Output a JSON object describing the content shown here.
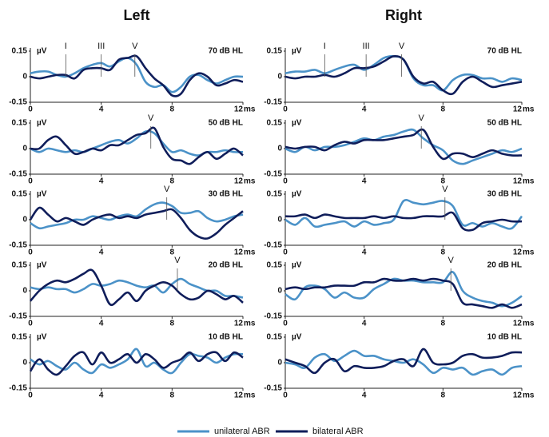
{
  "chart_data": [
    {
      "type": "line",
      "title": "Left",
      "label": "70 dB HL",
      "ylabel": "µV",
      "xlabel": "ms",
      "x": [
        0,
        0.5,
        1,
        1.5,
        2,
        2.5,
        3,
        3.5,
        4,
        4.5,
        5,
        5.5,
        6,
        6.5,
        7,
        7.5,
        8,
        8.5,
        9,
        9.5,
        10,
        10.5,
        11,
        11.5,
        12
      ],
      "series": [
        {
          "color": "#4b92c8",
          "values": [
            0.02,
            0.03,
            0.03,
            0.01,
            0.0,
            0.02,
            0.05,
            0.07,
            0.08,
            0.06,
            0.09,
            0.11,
            0.07,
            -0.03,
            -0.06,
            -0.05,
            -0.09,
            -0.06,
            0.0,
            0.01,
            -0.02,
            -0.04,
            -0.02,
            0.0,
            0.0
          ]
        },
        {
          "color": "#0f1d5a",
          "values": [
            0,
            -0.01,
            0.0,
            0.01,
            0.01,
            -0.01,
            0.04,
            0.05,
            0.05,
            0.04,
            0.1,
            0.11,
            0.12,
            0.05,
            -0.01,
            -0.05,
            -0.11,
            -0.1,
            -0.02,
            0.02,
            0.0,
            -0.05,
            -0.04,
            -0.02,
            -0.03
          ]
        }
      ],
      "peaks": [
        {
          "label": "I",
          "x": 2
        },
        {
          "label": "III",
          "x": 4
        },
        {
          "label": "V",
          "x": 5.9
        }
      ],
      "xlim": [
        0,
        12
      ],
      "ylim": [
        -0.15,
        0.15
      ],
      "xticks": [
        0,
        4,
        8,
        12
      ],
      "yticks": [
        0.15,
        0,
        -0.15
      ]
    },
    {
      "type": "line",
      "label": "50 dB HL",
      "ylabel": "µV",
      "xlabel": "ms",
      "x": [
        0,
        0.5,
        1,
        1.5,
        2,
        2.5,
        3,
        3.5,
        4,
        4.5,
        5,
        5.5,
        6,
        6.5,
        7,
        7.5,
        8,
        8.5,
        9,
        9.5,
        10,
        10.5,
        11,
        11.5,
        12
      ],
      "series": [
        {
          "color": "#4b92c8",
          "values": [
            0,
            -0.02,
            0.0,
            -0.01,
            -0.02,
            -0.01,
            -0.02,
            0.0,
            0.02,
            0.04,
            0.05,
            0.03,
            0.06,
            0.1,
            0.09,
            0.03,
            -0.02,
            -0.01,
            -0.03,
            -0.04,
            -0.02,
            -0.02,
            -0.01,
            -0.02,
            -0.02
          ]
        },
        {
          "color": "#0f1d5a",
          "values": [
            0,
            0.0,
            0.05,
            0.07,
            0.02,
            -0.03,
            -0.02,
            0.0,
            -0.01,
            0.02,
            0.02,
            0.05,
            0.08,
            0.09,
            0.12,
            0.01,
            -0.06,
            -0.07,
            -0.09,
            -0.05,
            -0.02,
            -0.06,
            -0.03,
            0.0,
            -0.04
          ]
        }
      ],
      "peaks": [
        {
          "label": "V",
          "x": 6.8
        }
      ],
      "xlim": [
        0,
        12
      ],
      "ylim": [
        -0.15,
        0.15
      ],
      "xticks": [
        0,
        4,
        8,
        12
      ],
      "yticks": [
        0.15,
        0,
        -0.15
      ]
    },
    {
      "type": "line",
      "label": "30 dB HL",
      "ylabel": "µV",
      "xlabel": "ms",
      "x": [
        0,
        0.5,
        1,
        1.5,
        2,
        2.5,
        3,
        3.5,
        4,
        4.5,
        5,
        5.5,
        6,
        6.5,
        7,
        7.5,
        8,
        8.5,
        9,
        9.5,
        10,
        10.5,
        11,
        11.5,
        12
      ],
      "series": [
        {
          "color": "#4b92c8",
          "values": [
            -0.02,
            -0.05,
            -0.04,
            -0.03,
            -0.02,
            0.0,
            0.0,
            0.02,
            0.01,
            0.0,
            0.02,
            0.03,
            0.02,
            0.06,
            0.09,
            0.1,
            0.08,
            0.04,
            0.04,
            0.05,
            0.01,
            -0.01,
            0.0,
            0.02,
            0.03
          ]
        },
        {
          "color": "#0f1d5a",
          "values": [
            0.0,
            0.07,
            0.03,
            -0.01,
            0.01,
            -0.01,
            -0.03,
            0.0,
            0.02,
            0.03,
            0.01,
            0.02,
            0.01,
            0.03,
            0.04,
            0.05,
            0.06,
            0.01,
            -0.06,
            -0.1,
            -0.11,
            -0.08,
            -0.03,
            0.01,
            0.05
          ]
        }
      ],
      "peaks": [
        {
          "label": "V",
          "x": 7.7
        }
      ],
      "xlim": [
        0,
        12
      ],
      "ylim": [
        -0.15,
        0.15
      ],
      "xticks": [
        0,
        4,
        8,
        12
      ],
      "yticks": [
        0.15,
        0,
        -0.15
      ]
    },
    {
      "type": "line",
      "label": "20 dB HL",
      "ylabel": "µV",
      "xlabel": "ms",
      "x": [
        0,
        0.5,
        1,
        1.5,
        2,
        2.5,
        3,
        3.5,
        4,
        4.5,
        5,
        5.5,
        6,
        6.5,
        7,
        7.5,
        8,
        8.5,
        9,
        9.5,
        10,
        10.5,
        11,
        11.5,
        12
      ],
      "series": [
        {
          "color": "#4b92c8",
          "values": [
            0.02,
            0.01,
            0.02,
            0.01,
            0.01,
            -0.01,
            0.01,
            0.04,
            0.03,
            0.04,
            0.06,
            0.05,
            0.03,
            0.02,
            0.03,
            -0.01,
            0.04,
            0.07,
            0.04,
            0.02,
            0.0,
            0.0,
            -0.03,
            -0.03,
            -0.04
          ]
        },
        {
          "color": "#0f1d5a",
          "values": [
            -0.06,
            0.0,
            0.04,
            0.06,
            0.05,
            0.07,
            0.1,
            0.12,
            0.03,
            -0.08,
            -0.05,
            -0.01,
            -0.06,
            0.0,
            0.03,
            0.05,
            0.03,
            -0.02,
            -0.05,
            -0.04,
            0.0,
            -0.02,
            -0.05,
            -0.03,
            -0.07
          ]
        }
      ],
      "peaks": [
        {
          "label": "V",
          "x": 8.3
        }
      ],
      "xlim": [
        0,
        12
      ],
      "ylim": [
        -0.15,
        0.15
      ],
      "xticks": [
        0,
        4,
        8,
        12
      ],
      "yticks": [
        0.15,
        0,
        -0.15
      ]
    },
    {
      "type": "line",
      "label": "10 dB HL",
      "ylabel": "µV",
      "xlabel": "ms",
      "x": [
        0,
        0.5,
        1,
        1.5,
        2,
        2.5,
        3,
        3.5,
        4,
        4.5,
        5,
        5.5,
        6,
        6.5,
        7,
        7.5,
        8,
        8.5,
        9,
        9.5,
        10,
        10.5,
        11,
        11.5,
        12
      ],
      "series": [
        {
          "color": "#4b92c8",
          "values": [
            0.02,
            -0.01,
            0.01,
            -0.02,
            -0.04,
            0.0,
            -0.04,
            -0.06,
            -0.01,
            -0.03,
            -0.01,
            0.02,
            0.08,
            -0.02,
            0.0,
            -0.04,
            -0.06,
            0.0,
            0.05,
            0.04,
            0.03,
            0.0,
            0.03,
            0.05,
            0.05
          ]
        },
        {
          "color": "#0f1d5a",
          "values": [
            -0.05,
            0.02,
            -0.04,
            -0.07,
            -0.02,
            0.04,
            0.06,
            -0.01,
            0.06,
            0.0,
            0.02,
            0.05,
            0.0,
            0.05,
            0.02,
            -0.03,
            0.0,
            0.02,
            0.06,
            0.01,
            0.05,
            0.06,
            0.01,
            0.06,
            0.03
          ]
        }
      ],
      "xlim": [
        0,
        12
      ],
      "ylim": [
        -0.15,
        0.15
      ],
      "xticks": [
        0,
        4,
        8,
        12
      ],
      "yticks": [
        0.15,
        0,
        -0.15
      ]
    },
    {
      "type": "line",
      "title": "Right",
      "label": "70 dB HL",
      "ylabel": "µV",
      "xlabel": "ms",
      "x": [
        0,
        0.5,
        1,
        1.5,
        2,
        2.5,
        3,
        3.5,
        4,
        4.5,
        5,
        5.5,
        6,
        6.5,
        7,
        7.5,
        8,
        8.5,
        9,
        9.5,
        10,
        10.5,
        11,
        11.5,
        12
      ],
      "series": [
        {
          "color": "#4b92c8",
          "values": [
            0.02,
            0.03,
            0.03,
            0.04,
            0.02,
            0.04,
            0.06,
            0.07,
            0.04,
            0.07,
            0.11,
            0.12,
            0.1,
            -0.01,
            -0.05,
            -0.05,
            -0.08,
            -0.02,
            0.01,
            0.01,
            -0.01,
            -0.01,
            -0.03,
            -0.01,
            -0.02
          ]
        },
        {
          "color": "#0f1d5a",
          "values": [
            0.0,
            -0.01,
            0.0,
            0.0,
            0.01,
            0.0,
            0.02,
            0.05,
            0.05,
            0.06,
            0.09,
            0.12,
            0.1,
            0.0,
            -0.04,
            -0.03,
            -0.08,
            -0.1,
            -0.03,
            0.0,
            -0.03,
            -0.06,
            -0.05,
            -0.04,
            -0.03
          ]
        }
      ],
      "peaks": [
        {
          "label": "I",
          "x": 2
        },
        {
          "label": "III",
          "x": 4.1
        },
        {
          "label": "V",
          "x": 5.9
        }
      ],
      "xlim": [
        0,
        12
      ],
      "ylim": [
        -0.15,
        0.15
      ],
      "xticks": [
        0,
        4,
        8,
        12
      ],
      "yticks": [
        0.15,
        0,
        -0.15
      ]
    },
    {
      "type": "line",
      "label": "50 dB HL",
      "ylabel": "µV",
      "xlabel": "ms",
      "x": [
        0,
        0.5,
        1,
        1.5,
        2,
        2.5,
        3,
        3.5,
        4,
        4.5,
        5,
        5.5,
        6,
        6.5,
        7,
        7.5,
        8,
        8.5,
        9,
        9.5,
        10,
        10.5,
        11,
        11.5,
        12
      ],
      "series": [
        {
          "color": "#4b92c8",
          "values": [
            0.0,
            -0.02,
            0.01,
            -0.01,
            0.01,
            0.01,
            0.02,
            0.04,
            0.06,
            0.05,
            0.07,
            0.08,
            0.1,
            0.11,
            0.06,
            0.02,
            -0.01,
            -0.07,
            -0.09,
            -0.07,
            -0.05,
            -0.03,
            -0.01,
            -0.02,
            0.0
          ]
        },
        {
          "color": "#0f1d5a",
          "values": [
            0.01,
            0.0,
            0.01,
            0.01,
            -0.01,
            0.02,
            0.04,
            0.03,
            0.05,
            0.05,
            0.05,
            0.06,
            0.07,
            0.08,
            0.11,
            0.01,
            -0.06,
            -0.03,
            -0.03,
            -0.05,
            -0.03,
            -0.01,
            -0.03,
            -0.04,
            -0.04
          ]
        }
      ],
      "peaks": [
        {
          "label": "V",
          "x": 6.9
        }
      ],
      "xlim": [
        0,
        12
      ],
      "ylim": [
        -0.15,
        0.15
      ],
      "xticks": [
        0,
        4,
        8,
        12
      ],
      "yticks": [
        0.15,
        0,
        -0.15
      ]
    },
    {
      "type": "line",
      "label": "30 dB HL",
      "ylabel": "µV",
      "xlabel": "ms",
      "x": [
        0,
        0.5,
        1,
        1.5,
        2,
        2.5,
        3,
        3.5,
        4,
        4.5,
        5,
        5.5,
        6,
        6.5,
        7,
        7.5,
        8,
        8.5,
        9,
        9.5,
        10,
        10.5,
        11,
        11.5,
        12
      ],
      "series": [
        {
          "color": "#4b92c8",
          "values": [
            0.0,
            -0.03,
            0.01,
            -0.04,
            -0.03,
            -0.02,
            -0.01,
            -0.04,
            -0.01,
            -0.03,
            -0.02,
            0.0,
            0.11,
            0.1,
            0.09,
            0.1,
            0.11,
            0.08,
            -0.03,
            -0.02,
            -0.04,
            -0.02,
            -0.04,
            -0.05,
            0.02
          ]
        },
        {
          "color": "#0f1d5a",
          "values": [
            0.02,
            0.02,
            0.03,
            0.01,
            0.03,
            0.02,
            0.01,
            0.01,
            0.01,
            0.02,
            0.01,
            0.02,
            0.01,
            0.01,
            0.02,
            0.02,
            0.02,
            0.04,
            -0.05,
            -0.06,
            -0.02,
            -0.01,
            0.0,
            -0.01,
            -0.01
          ]
        }
      ],
      "peaks": [
        {
          "label": "V",
          "x": 8.1
        }
      ],
      "xlim": [
        0,
        12
      ],
      "ylim": [
        -0.15,
        0.15
      ],
      "xticks": [
        0,
        4,
        8,
        12
      ],
      "yticks": [
        0.15,
        0,
        -0.15
      ]
    },
    {
      "type": "line",
      "label": "20 dB HL",
      "ylabel": "µV",
      "xlabel": "ms",
      "x": [
        0,
        0.5,
        1,
        1.5,
        2,
        2.5,
        3,
        3.5,
        4,
        4.5,
        5,
        5.5,
        6,
        6.5,
        7,
        7.5,
        8,
        8.5,
        9,
        9.5,
        10,
        10.5,
        11,
        11.5,
        12
      ],
      "series": [
        {
          "color": "#4b92c8",
          "values": [
            -0.02,
            -0.05,
            0.02,
            0.03,
            0.01,
            -0.04,
            -0.01,
            -0.04,
            -0.04,
            0.01,
            0.04,
            0.07,
            0.06,
            0.06,
            0.05,
            0.05,
            0.05,
            0.11,
            0.0,
            -0.04,
            -0.06,
            -0.07,
            -0.09,
            -0.07,
            -0.03
          ]
        },
        {
          "color": "#0f1d5a",
          "values": [
            0.01,
            0.02,
            0.01,
            0.02,
            0.02,
            0.03,
            0.03,
            0.03,
            0.05,
            0.05,
            0.07,
            0.06,
            0.06,
            0.07,
            0.06,
            0.07,
            0.06,
            0.04,
            -0.07,
            -0.08,
            -0.09,
            -0.1,
            -0.08,
            -0.1,
            -0.08
          ]
        }
      ],
      "peaks": [
        {
          "label": "V",
          "x": 8.4
        }
      ],
      "xlim": [
        0,
        12
      ],
      "ylim": [
        -0.15,
        0.15
      ],
      "xticks": [
        0,
        4,
        8,
        12
      ],
      "yticks": [
        0.15,
        0,
        -0.15
      ]
    },
    {
      "type": "line",
      "label": "10 dB HL",
      "ylabel": "µV",
      "xlabel": "ms",
      "x": [
        0,
        0.5,
        1,
        1.5,
        2,
        2.5,
        3,
        3.5,
        4,
        4.5,
        5,
        5.5,
        6,
        6.5,
        7,
        7.5,
        8,
        8.5,
        9,
        9.5,
        10,
        10.5,
        11,
        11.5,
        12
      ],
      "series": [
        {
          "color": "#4b92c8",
          "values": [
            0.0,
            -0.01,
            -0.03,
            0.03,
            0.05,
            0.01,
            0.04,
            0.07,
            0.04,
            0.04,
            0.02,
            0.01,
            0.0,
            0.02,
            -0.01,
            -0.06,
            -0.03,
            -0.04,
            -0.03,
            -0.07,
            -0.05,
            -0.04,
            -0.07,
            -0.03,
            -0.02
          ]
        },
        {
          "color": "#0f1d5a",
          "values": [
            0.02,
            0.0,
            -0.02,
            -0.06,
            0.0,
            0.02,
            -0.05,
            -0.02,
            -0.03,
            -0.03,
            -0.02,
            0.01,
            0.02,
            -0.02,
            0.08,
            0.0,
            -0.01,
            0.0,
            0.04,
            0.05,
            0.03,
            0.03,
            0.04,
            0.06,
            0.06
          ]
        }
      ],
      "xlim": [
        0,
        12
      ],
      "ylim": [
        -0.15,
        0.15
      ],
      "xticks": [
        0,
        4,
        8,
        12
      ],
      "yticks": [
        0.15,
        0,
        -0.15
      ]
    }
  ],
  "legend": [
    {
      "name": "unilateral ABR",
      "color": "#4b92c8"
    },
    {
      "name": "bilateral ABR",
      "color": "#0f1d5a"
    }
  ]
}
